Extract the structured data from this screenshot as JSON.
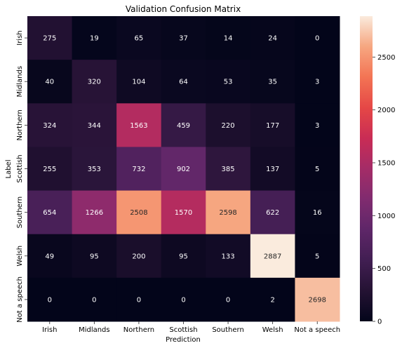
{
  "chart_data": {
    "type": "heatmap",
    "title": "Validation Confusion Matrix",
    "xlabel": "Prediction",
    "ylabel": "Label",
    "x_categories": [
      "Irish",
      "Midlands",
      "Northern",
      "Scottish",
      "Southern",
      "Welsh",
      "Not a speech"
    ],
    "y_categories": [
      "Irish",
      "Midlands",
      "Northern",
      "Scottish",
      "Southern",
      "Welsh",
      "Not a speech"
    ],
    "values": [
      [
        275,
        19,
        65,
        37,
        14,
        24,
        0
      ],
      [
        40,
        320,
        104,
        64,
        53,
        35,
        3
      ],
      [
        324,
        344,
        1563,
        459,
        220,
        177,
        3
      ],
      [
        255,
        353,
        732,
        902,
        385,
        137,
        5
      ],
      [
        654,
        1266,
        2508,
        1570,
        2598,
        622,
        16
      ],
      [
        49,
        95,
        200,
        95,
        133,
        2887,
        5
      ],
      [
        0,
        0,
        0,
        0,
        0,
        2,
        2698
      ]
    ],
    "colorscale": "rocket",
    "zlim": [
      0,
      2887
    ],
    "colorbar_ticks": [
      "0",
      "500",
      "1000",
      "1500",
      "2000",
      "2500"
    ],
    "colorbar_tick_values": [
      0,
      500,
      1000,
      1500,
      2000,
      2500
    ]
  }
}
